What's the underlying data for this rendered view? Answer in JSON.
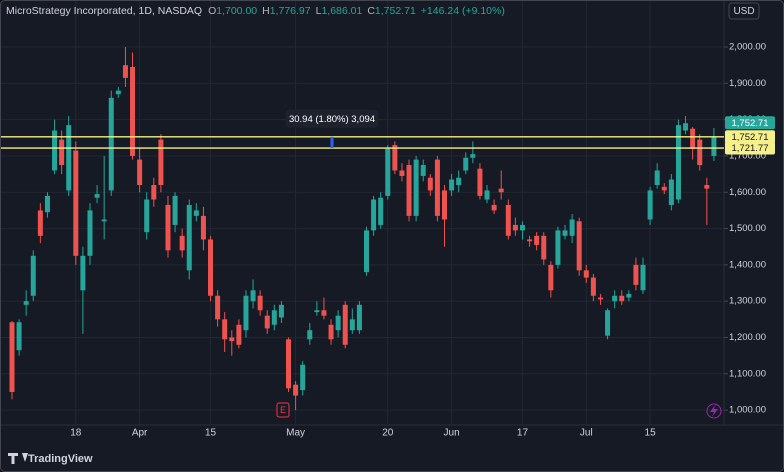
{
  "chart_data": {
    "type": "candlestick",
    "title": "MicroStrategy Incorporated, 1D, NASDAQ",
    "ohlc_header": [
      {
        "label": "O",
        "value": "1,700.00"
      },
      {
        "label": "H",
        "value": "1,776.97"
      },
      {
        "label": "L",
        "value": "1,686.01"
      },
      {
        "label": "C",
        "value": "1,752.71"
      }
    ],
    "change": "+146.24 (+9.10%)",
    "currency": "USD",
    "categories": [
      null,
      null,
      null,
      null,
      null,
      null,
      null,
      null,
      null,
      "18",
      null,
      null,
      null,
      null,
      null,
      null,
      null,
      null,
      "Apr",
      null,
      null,
      null,
      null,
      null,
      null,
      null,
      null,
      null,
      "15",
      null,
      null,
      null,
      null,
      null,
      null,
      null,
      null,
      null,
      null,
      null,
      "May",
      null,
      null,
      null,
      null,
      null,
      null,
      null,
      null,
      null,
      null,
      null,
      null,
      "20",
      null,
      null,
      null,
      null,
      null,
      null,
      null,
      null,
      "Jun",
      null,
      null,
      null,
      null,
      null,
      null,
      null,
      null,
      null,
      "17",
      null,
      null,
      null,
      null,
      null,
      null,
      null,
      null,
      "Jul",
      null,
      null,
      null,
      null,
      null,
      null,
      null,
      null,
      "15",
      null,
      null,
      null,
      null,
      null,
      null,
      null,
      null,
      null
    ],
    "open": [
      1242,
      1165,
      1290,
      1315,
      1550,
      1545,
      1660,
      1745,
      1605,
      1715,
      1330,
      1425,
      1585,
      1520,
      1605,
      1870,
      1950,
      1945,
      1690,
      1490,
      1620,
      1745,
      1565,
      1510,
      1480,
      1385,
      1535,
      1535,
      1470,
      1315,
      1250,
      1200,
      1235,
      1220,
      1300,
      1315,
      1260,
      1235,
      1255,
      1195,
      1070,
      1055,
      1195,
      1270,
      1275,
      1235,
      1220,
      1290,
      1220,
      1220,
      1380,
      1495,
      1510,
      1590,
      1730,
      1660,
      1675,
      1535,
      1645,
      1640,
      1690,
      1605,
      1605,
      1620,
      1660,
      1695,
      1665,
      1580,
      1565,
      1610,
      1565,
      1510,
      1495,
      1470,
      1480,
      1480,
      1400,
      1400,
      1480,
      1480,
      1520,
      1385,
      1365,
      1310,
      1205,
      1300,
      1315,
      1310,
      1400,
      1330,
      1525,
      1620,
      1615,
      1565,
      1580,
      1770,
      1775,
      1745,
      1620,
      1700
    ],
    "high": [
      1245,
      1250,
      1330,
      1440,
      1570,
      1600,
      1800,
      1770,
      1810,
      1740,
      1450,
      1570,
      1620,
      1700,
      1880,
      1890,
      2000,
      1985,
      1720,
      1600,
      1640,
      1760,
      1590,
      1600,
      1500,
      1580,
      1570,
      1560,
      1480,
      1330,
      1270,
      1220,
      1250,
      1330,
      1360,
      1330,
      1275,
      1290,
      1300,
      1200,
      1080,
      1135,
      1240,
      1300,
      1310,
      1250,
      1275,
      1300,
      1280,
      1300,
      1505,
      1590,
      1600,
      1730,
      1740,
      1680,
      1690,
      1700,
      1690,
      1650,
      1700,
      1620,
      1650,
      1660,
      1710,
      1740,
      1680,
      1620,
      1580,
      1660,
      1580,
      1530,
      1520,
      1480,
      1490,
      1490,
      1410,
      1505,
      1510,
      1540,
      1530,
      1400,
      1375,
      1320,
      1280,
      1330,
      1330,
      1330,
      1420,
      1420,
      1615,
      1680,
      1625,
      1650,
      1800,
      1810,
      1780,
      1760,
      1640,
      1776.97
    ],
    "low": [
      1030,
      1150,
      1260,
      1300,
      1460,
      1530,
      1650,
      1650,
      1590,
      1400,
      1210,
      1400,
      1570,
      1470,
      1590,
      1860,
      1890,
      1690,
      1600,
      1470,
      1560,
      1600,
      1420,
      1490,
      1420,
      1360,
      1520,
      1440,
      1300,
      1230,
      1160,
      1150,
      1170,
      1200,
      1280,
      1260,
      1210,
      1220,
      1240,
      1050,
      1000,
      1040,
      1180,
      1260,
      1250,
      1180,
      1200,
      1170,
      1210,
      1210,
      1370,
      1480,
      1500,
      1580,
      1650,
      1630,
      1520,
      1520,
      1630,
      1590,
      1520,
      1450,
      1590,
      1600,
      1650,
      1680,
      1580,
      1570,
      1540,
      1580,
      1470,
      1480,
      1470,
      1450,
      1440,
      1400,
      1310,
      1390,
      1470,
      1460,
      1370,
      1350,
      1300,
      1290,
      1195,
      1280,
      1290,
      1300,
      1330,
      1320,
      1510,
      1610,
      1595,
      1550,
      1570,
      1760,
      1690,
      1660,
      1510,
      1686.01
    ],
    "close": [
      1050,
      1242,
      1300,
      1425,
      1480,
      1590,
      1770,
      1675,
      1785,
      1425,
      1425,
      1550,
      1595,
      1525,
      1860,
      1880,
      1915,
      1700,
      1620,
      1580,
      1580,
      1620,
      1440,
      1590,
      1440,
      1565,
      1550,
      1470,
      1315,
      1250,
      1195,
      1190,
      1180,
      1315,
      1330,
      1275,
      1225,
      1275,
      1290,
      1060,
      1040,
      1125,
      1220,
      1275,
      1260,
      1195,
      1260,
      1180,
      1250,
      1290,
      1495,
      1580,
      1585,
      1720,
      1660,
      1645,
      1535,
      1690,
      1675,
      1605,
      1535,
      1525,
      1635,
      1640,
      1695,
      1705,
      1590,
      1605,
      1550,
      1600,
      1480,
      1495,
      1510,
      1465,
      1455,
      1415,
      1330,
      1495,
      1495,
      1525,
      1385,
      1365,
      1315,
      1305,
      1275,
      1315,
      1300,
      1320,
      1345,
      1400,
      1605,
      1660,
      1605,
      1635,
      1785,
      1790,
      1720,
      1675,
      1610,
      1752.71
    ],
    "up_color": "#26a69a",
    "down_color": "#ef5350",
    "ylim": [
      959,
      2124
    ],
    "yticks": [
      {
        "value": 1000,
        "label": "1,000.00"
      },
      {
        "value": 1100,
        "label": "1,100.00"
      },
      {
        "value": 1200,
        "label": "1,200.00"
      },
      {
        "value": 1300,
        "label": "1,300.00"
      },
      {
        "value": 1400,
        "label": "1,400.00"
      },
      {
        "value": 1500,
        "label": "1,500.00"
      },
      {
        "value": 1600,
        "label": "1,600.00"
      },
      {
        "value": 1700,
        "label": "1,700.00"
      },
      {
        "value": 1800,
        "label": "1,800.00"
      },
      {
        "value": 1900,
        "label": "1,900.00"
      },
      {
        "value": 2000,
        "label": "2,000.00"
      }
    ],
    "grid": true,
    "price_lines": [
      {
        "value": 1752.71,
        "label": "1,752.71"
      },
      {
        "value": 1721.77,
        "label": "1,721.77"
      }
    ],
    "price_line_color": "#f5f08a",
    "last_price": {
      "value": 1752.71,
      "label": "1,752.71"
    },
    "measure": "30.94 (1.80%) 3,094",
    "earnings_marker": "E",
    "brand": "TradingView"
  }
}
